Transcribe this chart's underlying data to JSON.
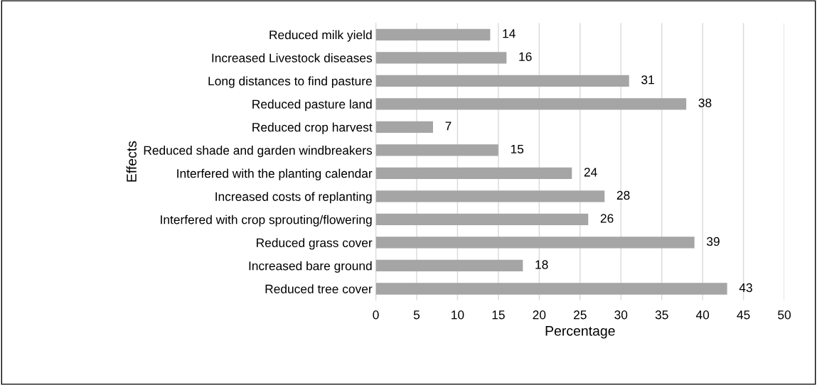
{
  "chart_data": {
    "type": "bar",
    "orientation": "horizontal",
    "xlabel": "Percentage",
    "ylabel": "Effects",
    "categories": [
      "Reduced milk yield",
      "Increased Livestock diseases",
      "Long distances to find pasture",
      "Reduced pasture land",
      "Reduced crop harvest",
      "Reduced shade and garden windbreakers",
      "Interfered with the planting calendar",
      "Increased costs of replanting",
      "Interfered with crop sprouting/flowering",
      "Reduced grass cover",
      "Increased bare ground",
      "Reduced tree cover"
    ],
    "values": [
      14,
      16,
      31,
      38,
      7,
      15,
      24,
      28,
      26,
      39,
      18,
      43
    ],
    "color": "#a5a5a5",
    "xlim": [
      0,
      50
    ],
    "xticks": [
      0,
      5,
      10,
      15,
      20,
      25,
      30,
      35,
      40,
      45,
      50
    ],
    "grid": "x",
    "data_labels": true
  }
}
